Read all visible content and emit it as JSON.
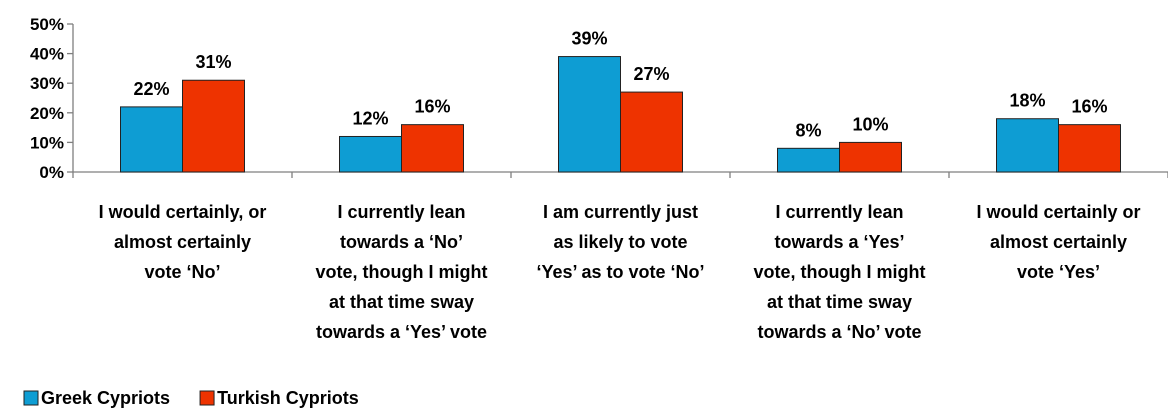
{
  "chart_data": {
    "type": "bar",
    "title": "",
    "xlabel": "",
    "ylabel": "",
    "ylim": [
      0,
      50
    ],
    "yticks": [
      "0%",
      "10%",
      "20%",
      "30%",
      "40%",
      "50%"
    ],
    "grid": false,
    "legend_position": "bottom-left",
    "categories": [
      [
        "I would certainly, or",
        "almost certainly",
        "vote ‘No’"
      ],
      [
        "I currently lean",
        "towards a ‘No’",
        "vote, though I might",
        "at that time sway",
        "towards a ‘Yes’ vote"
      ],
      [
        "I am currently just",
        "as likely to vote",
        "‘Yes’ as to vote ‘No’"
      ],
      [
        "I currently lean",
        "towards a ‘Yes’",
        "vote, though I might",
        "at that time sway",
        "towards a ‘No’ vote"
      ],
      [
        "I would certainly or",
        "almost certainly",
        "vote ‘Yes’"
      ]
    ],
    "series": [
      {
        "name": "Greek Cypriots",
        "color": "#0E9DD3",
        "values": [
          22,
          12,
          39,
          8,
          18
        ],
        "labels": [
          "22%",
          "12%",
          "39%",
          "8%",
          "18%"
        ]
      },
      {
        "name": "Turkish Cypriots",
        "color": "#EE3300",
        "values": [
          31,
          16,
          27,
          10,
          16
        ],
        "labels": [
          "31%",
          "16%",
          "27%",
          "10%",
          "16%"
        ]
      }
    ]
  }
}
